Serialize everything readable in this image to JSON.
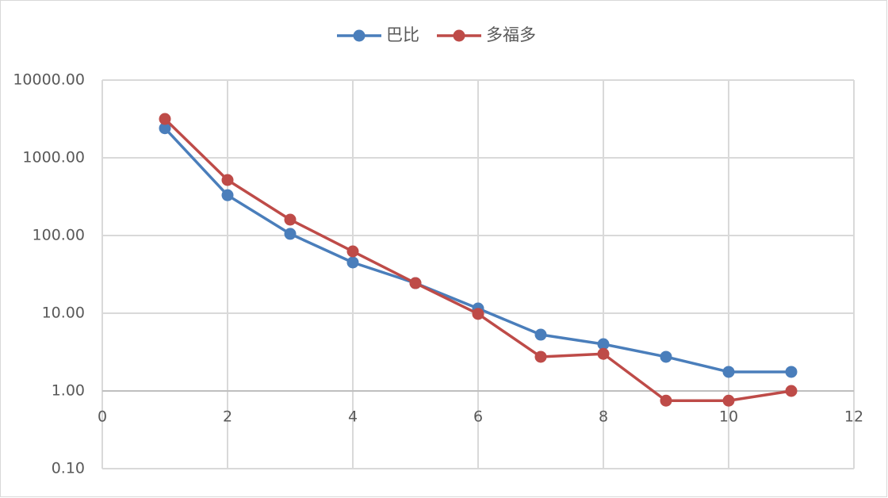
{
  "chart_data": {
    "type": "line",
    "x": [
      1,
      2,
      3,
      4,
      5,
      6,
      7,
      8,
      9,
      10,
      11
    ],
    "series": [
      {
        "name": "巴比",
        "color": "#4a7ebb",
        "values": [
          2400,
          330,
          105,
          45,
          24.4,
          11.5,
          5.3,
          4.0,
          2.75,
          1.76,
          1.76
        ]
      },
      {
        "name": "多福多",
        "color": "#be4b48",
        "values": [
          3160,
          518,
          160,
          62.5,
          24.4,
          9.8,
          2.75,
          3.0,
          0.75,
          0.75,
          1.0
        ]
      }
    ],
    "xlim": [
      0,
      12
    ],
    "xticks": [
      0,
      2,
      4,
      6,
      8,
      10,
      12
    ],
    "ylim": [
      0.1,
      10000
    ],
    "yticks": [
      {
        "value": 0.1,
        "label": "0.10"
      },
      {
        "value": 1,
        "label": "1.00"
      },
      {
        "value": 10,
        "label": "10.00"
      },
      {
        "value": 100,
        "label": "100.00"
      },
      {
        "value": 1000,
        "label": "1000.00"
      },
      {
        "value": 10000,
        "label": "10000.00"
      }
    ],
    "ylog": true,
    "grid": true,
    "legend": "top"
  }
}
